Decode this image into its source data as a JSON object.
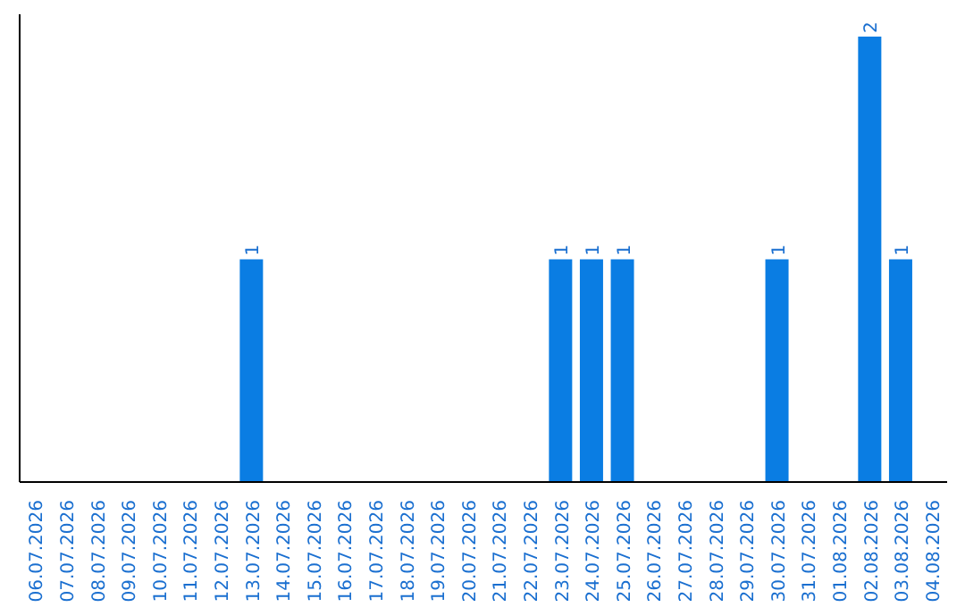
{
  "chart_data": {
    "type": "bar",
    "categories": [
      "06.07.2026",
      "07.07.2026",
      "08.07.2026",
      "09.07.2026",
      "10.07.2026",
      "11.07.2026",
      "12.07.2026",
      "13.07.2026",
      "14.07.2026",
      "15.07.2026",
      "16.07.2026",
      "17.07.2026",
      "18.07.2026",
      "19.07.2026",
      "20.07.2026",
      "21.07.2026",
      "22.07.2026",
      "23.07.2026",
      "24.07.2026",
      "25.07.2026",
      "26.07.2026",
      "27.07.2026",
      "28.07.2026",
      "29.07.2026",
      "30.07.2026",
      "31.07.2026",
      "01.08.2026",
      "02.08.2026",
      "03.08.2026",
      "04.08.2026"
    ],
    "values": [
      0,
      0,
      0,
      0,
      0,
      0,
      0,
      1,
      0,
      0,
      0,
      0,
      0,
      0,
      0,
      0,
      0,
      1,
      1,
      1,
      0,
      0,
      0,
      0,
      1,
      0,
      0,
      2,
      1,
      0
    ],
    "value_labels": [
      null,
      null,
      null,
      null,
      null,
      null,
      null,
      "1",
      null,
      null,
      null,
      null,
      null,
      null,
      null,
      null,
      null,
      "1",
      "1",
      "1",
      null,
      null,
      null,
      null,
      "1",
      null,
      null,
      "2",
      "1",
      null
    ],
    "color": "#0a7de3",
    "tick_labels": "x"
  }
}
